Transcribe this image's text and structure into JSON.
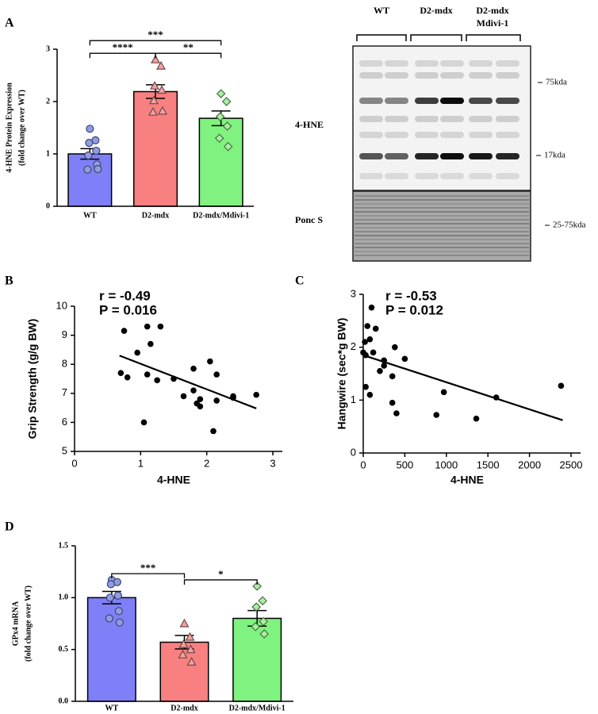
{
  "panel_labels": [
    "A",
    "B",
    "C",
    "D"
  ],
  "blot": {
    "groups": [
      [
        "WT"
      ],
      [
        "D2-mdx"
      ],
      [
        "D2-mdx",
        "Mdivi-1"
      ]
    ],
    "rows": [
      "4-HNE",
      "Ponc S"
    ],
    "markers": [
      "75kda",
      "17kda",
      "25-75kda"
    ]
  },
  "chart_data": [
    {
      "type": "bar",
      "y_label": [
        "4-HNE Protein Expression",
        "(fold change over WT)"
      ],
      "categories": [
        "WT",
        "D2-mdx",
        "D2-mdx/Mdivi-1"
      ],
      "values": [
        1.0,
        2.19,
        1.68
      ],
      "errors": [
        0.1,
        0.13,
        0.14
      ],
      "colors": [
        "#7f7ff7",
        "#f88080",
        "#80f27f"
      ],
      "point_colors": [
        "#8e9be6",
        "#f5a0a0",
        "#a8f0a0"
      ],
      "markers": [
        "circle",
        "triangle",
        "diamond"
      ],
      "points": [
        [
          1.48,
          1.26,
          1.21,
          1.06,
          0.97,
          0.8,
          0.7,
          0.71
        ],
        [
          2.8,
          2.68,
          2.3,
          2.22,
          2.02,
          1.82,
          1.8
        ],
        [
          2.15,
          2.0,
          1.71,
          1.53,
          1.3,
          1.14
        ]
      ],
      "significance": [
        {
          "groups": [
            0,
            1
          ],
          "label": "****"
        },
        {
          "groups": [
            1,
            2
          ],
          "label": "**"
        },
        {
          "groups": [
            0,
            2
          ],
          "label": "***"
        }
      ],
      "ylim": [
        0,
        3
      ],
      "yticks": [
        0,
        1,
        2,
        3
      ]
    },
    {
      "type": "scatter",
      "x_label": "4-HNE",
      "y_label": "Grip Strength (g/g BW)",
      "annotations": [
        "r = -0.49",
        "P = 0.016"
      ],
      "x": [
        0.75,
        1.1,
        1.3,
        0.95,
        1.15,
        0.7,
        0.8,
        1.1,
        1.25,
        1.5,
        1.05,
        1.65,
        1.8,
        1.8,
        1.85,
        1.9,
        1.9,
        2.05,
        2.15,
        2.15,
        2.1,
        2.4,
        2.4,
        2.75
      ],
      "y": [
        9.15,
        9.3,
        9.3,
        8.4,
        8.7,
        7.7,
        7.55,
        7.65,
        7.45,
        7.5,
        6.0,
        6.9,
        7.85,
        7.1,
        6.65,
        6.55,
        6.8,
        8.1,
        7.65,
        6.75,
        5.7,
        6.9,
        6.85,
        6.95
      ],
      "fit": {
        "x": [
          0.68,
          2.75
        ],
        "y": [
          8.3,
          6.48
        ]
      },
      "color": "#000000",
      "xlim": [
        0,
        3
      ],
      "xticks": [
        0,
        1,
        2,
        3
      ],
      "ylim": [
        5,
        10
      ],
      "yticks": [
        5,
        6,
        7,
        8,
        9,
        10
      ]
    },
    {
      "type": "scatter",
      "x_label": "4-HNE",
      "y_label": "Hangwire (sec*g BW)",
      "annotations": [
        "r = -0.53",
        "P = 0.012"
      ],
      "x": [
        50,
        100,
        20,
        80,
        150,
        0,
        30,
        120,
        250,
        380,
        500,
        250,
        350,
        200,
        30,
        80,
        350,
        400,
        880,
        970,
        1360,
        1600,
        2380
      ],
      "y": [
        2.4,
        2.75,
        2.1,
        2.15,
        2.35,
        1.9,
        1.85,
        1.9,
        1.75,
        2.0,
        1.78,
        1.65,
        1.45,
        1.55,
        1.25,
        1.1,
        0.95,
        0.75,
        0.72,
        1.15,
        0.65,
        1.05,
        1.27
      ],
      "fit": {
        "x": [
          0,
          2400
        ],
        "y": [
          1.85,
          0.62
        ]
      },
      "color": "#000000",
      "xlim": [
        0,
        2500
      ],
      "xticks": [
        0,
        500,
        1000,
        1500,
        2000,
        2500
      ],
      "ylim": [
        0,
        3
      ],
      "yticks": [
        0,
        1,
        2,
        3
      ]
    },
    {
      "type": "bar",
      "y_label": [
        "GPx4 mRNA",
        "(fold change over WT)"
      ],
      "categories": [
        "WT",
        "D2-mdx",
        "D2-mdx/Mdivi-1"
      ],
      "values": [
        1.0,
        0.57,
        0.8
      ],
      "errors": [
        0.06,
        0.065,
        0.075
      ],
      "colors": [
        "#7f7ff7",
        "#f88080",
        "#80f27f"
      ],
      "point_colors": [
        "#8e9be6",
        "#f5a0a0",
        "#a8f0a0"
      ],
      "markers": [
        "circle",
        "triangle",
        "diamond"
      ],
      "points": [
        [
          1.17,
          1.15,
          1.13,
          1.02,
          1.0,
          0.87,
          0.8,
          0.76
        ],
        [
          0.75,
          0.62,
          0.55,
          0.5,
          0.45,
          0.38
        ],
        [
          1.11,
          0.97,
          0.91,
          0.77,
          0.72,
          0.65
        ]
      ],
      "significance": [
        {
          "groups": [
            0,
            1
          ],
          "label": "***"
        },
        {
          "groups": [
            1,
            2
          ],
          "label": "*"
        }
      ],
      "ylim": [
        0,
        1.5
      ],
      "yticks": [
        {
          "value": 0,
          "label": "0.0"
        },
        0.5,
        {
          "value": 1,
          "label": "1.0"
        },
        1.5
      ]
    }
  ]
}
